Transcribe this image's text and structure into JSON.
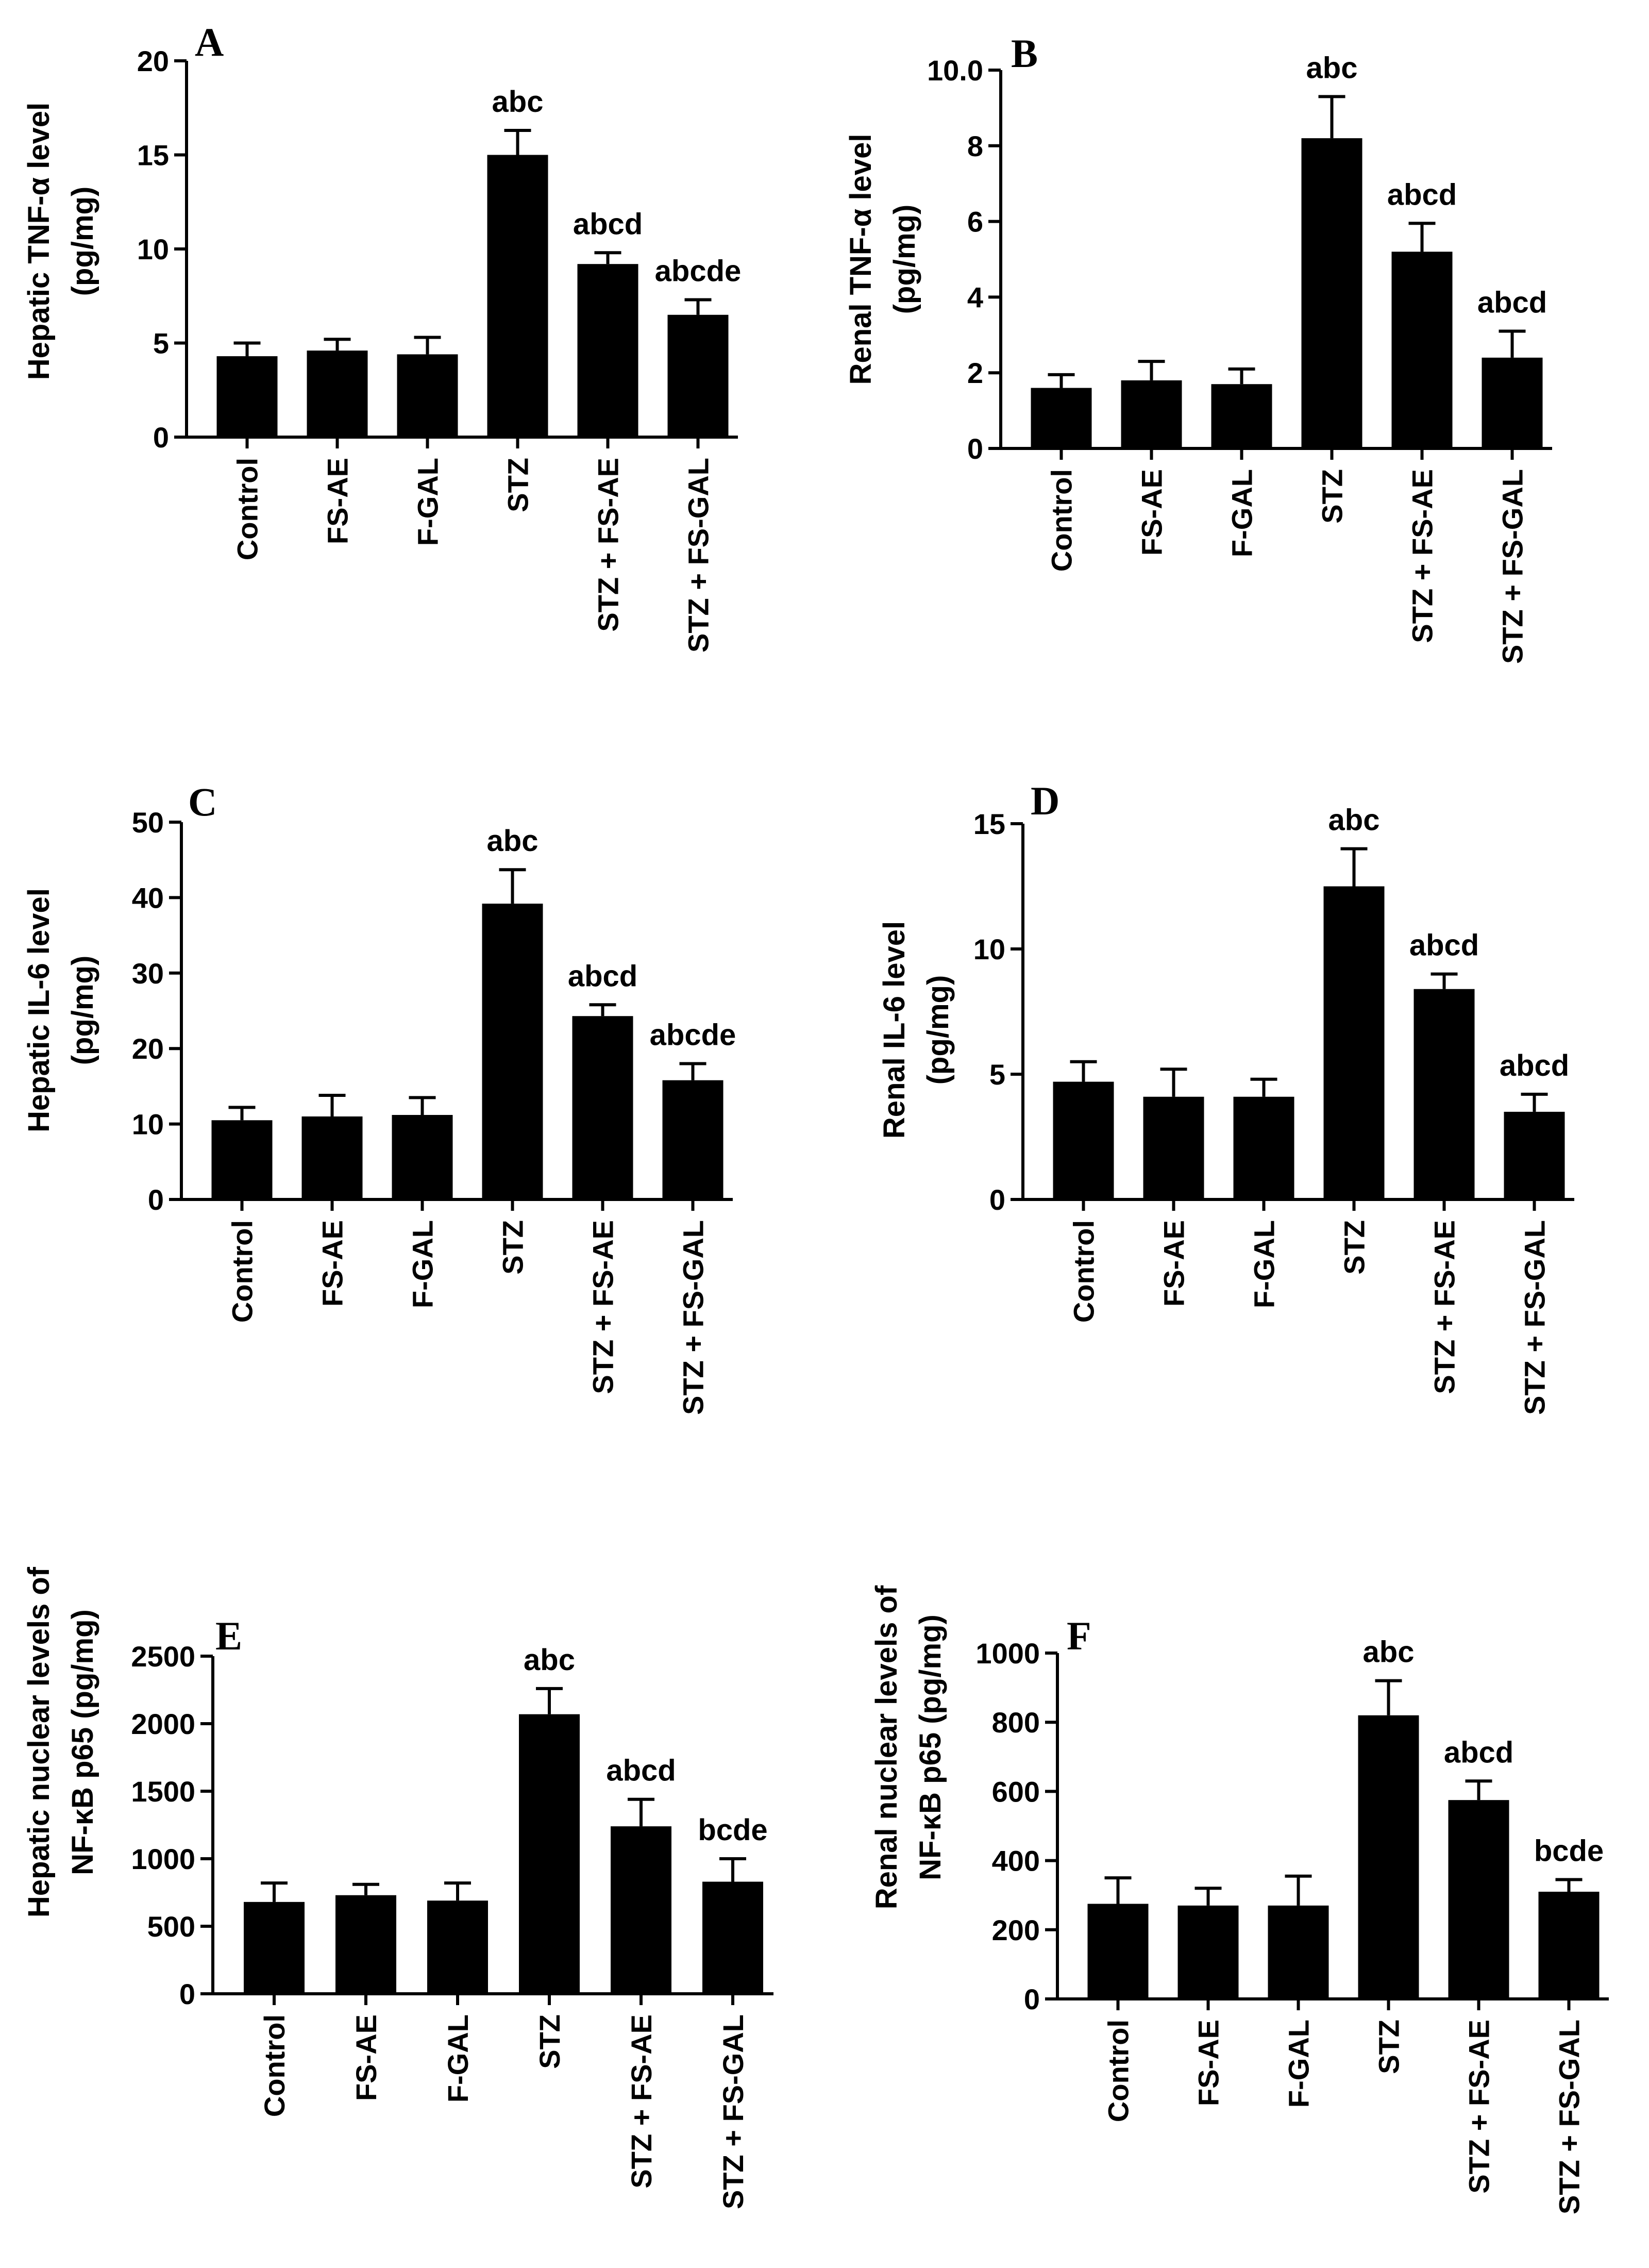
{
  "chart_data": [
    {
      "panel": "A",
      "type": "bar",
      "title": "",
      "xlabel": "",
      "ylabel": "Hepatic TNF-α level",
      "ylabel_units": "(pg/mg)",
      "ylim": [
        0,
        20
      ],
      "yticks": [
        0,
        5,
        10,
        15,
        20
      ],
      "categories": [
        "Control",
        "FS-AE",
        "F-GAL",
        "STZ",
        "STZ + FS-AE",
        "STZ + FS-GAL"
      ],
      "values": [
        4.3,
        4.6,
        4.4,
        15.0,
        9.2,
        6.5
      ],
      "errors": [
        0.7,
        0.6,
        0.9,
        1.3,
        0.6,
        0.8
      ],
      "annotations": [
        "",
        "",
        "",
        "abc",
        "abcd",
        "abcde"
      ]
    },
    {
      "panel": "B",
      "type": "bar",
      "title": "",
      "xlabel": "",
      "ylabel": "Renal TNF-α level",
      "ylabel_units": "(pg/mg)",
      "ylim": [
        0,
        10
      ],
      "yticks": [
        "0",
        "2",
        "4",
        "6",
        "8",
        "10.0"
      ],
      "yticks_values": [
        0,
        2,
        4,
        6,
        8,
        10
      ],
      "categories": [
        "Control",
        "FS-AE",
        "F-GAL",
        "STZ",
        "STZ + FS-AE",
        "STZ + FS-GAL"
      ],
      "values": [
        1.6,
        1.8,
        1.7,
        8.2,
        5.2,
        2.4
      ],
      "errors": [
        0.35,
        0.5,
        0.4,
        1.1,
        0.75,
        0.7
      ],
      "annotations": [
        "",
        "",
        "",
        "abc",
        "abcd",
        "abcd"
      ]
    },
    {
      "panel": "C",
      "type": "bar",
      "title": "",
      "xlabel": "",
      "ylabel": "Hepatic IL-6 level",
      "ylabel_units": "(pg/mg)",
      "ylim": [
        0,
        50
      ],
      "yticks": [
        0,
        10,
        20,
        30,
        40,
        50
      ],
      "categories": [
        "Control",
        "FS-AE",
        "F-GAL",
        "STZ",
        "STZ + FS-AE",
        "STZ + FS-GAL"
      ],
      "values": [
        10.5,
        11.0,
        11.2,
        39.2,
        24.3,
        15.8
      ],
      "errors": [
        1.7,
        2.8,
        2.3,
        4.5,
        1.5,
        2.2
      ],
      "annotations": [
        "",
        "",
        "",
        "abc",
        "abcd",
        "abcde"
      ]
    },
    {
      "panel": "D",
      "type": "bar",
      "title": "",
      "xlabel": "",
      "ylabel": "Renal IL-6 level",
      "ylabel_units": "(pg/mg)",
      "ylim": [
        0,
        15
      ],
      "yticks": [
        0,
        5,
        10,
        15
      ],
      "categories": [
        "Control",
        "FS-AE",
        "F-GAL",
        "STZ",
        "STZ + FS-AE",
        "STZ + FS-GAL"
      ],
      "values": [
        4.7,
        4.1,
        4.1,
        12.5,
        8.4,
        3.5
      ],
      "errors": [
        0.8,
        1.1,
        0.7,
        1.5,
        0.6,
        0.7
      ],
      "annotations": [
        "",
        "",
        "",
        "abc",
        "abcd",
        "abcd"
      ]
    },
    {
      "panel": "E",
      "type": "bar",
      "title": "",
      "xlabel": "",
      "ylabel": "Hepatic nuclear levels of",
      "ylabel_units": "NF-κB p65 (pg/mg)",
      "ylim": [
        0,
        2500
      ],
      "yticks": [
        0,
        500,
        1000,
        1500,
        2000,
        2500
      ],
      "categories": [
        "Control",
        "FS-AE",
        "F-GAL",
        "STZ",
        "STZ + FS-AE",
        "STZ + FS-GAL"
      ],
      "values": [
        680,
        730,
        690,
        2070,
        1240,
        830
      ],
      "errors": [
        140,
        80,
        130,
        190,
        200,
        170
      ],
      "annotations": [
        "",
        "",
        "",
        "abc",
        "abcd",
        "bcde"
      ]
    },
    {
      "panel": "F",
      "type": "bar",
      "title": "",
      "xlabel": "",
      "ylabel": "Renal nuclear levels of",
      "ylabel_units": "NF-κB p65 (pg/mg)",
      "ylim": [
        0,
        1000
      ],
      "yticks": [
        0,
        200,
        400,
        600,
        800,
        1000
      ],
      "categories": [
        "Control",
        "FS-AE",
        "F-GAL",
        "STZ",
        "STZ + FS-AE",
        "STZ + FS-GAL"
      ],
      "values": [
        275,
        270,
        270,
        820,
        575,
        310
      ],
      "errors": [
        75,
        50,
        85,
        100,
        55,
        35
      ],
      "annotations": [
        "",
        "",
        "",
        "abc",
        "abcd",
        "bcde"
      ]
    }
  ],
  "style": {
    "bar_color": "#000000",
    "axis_color": "#000000",
    "background": "#ffffff"
  }
}
